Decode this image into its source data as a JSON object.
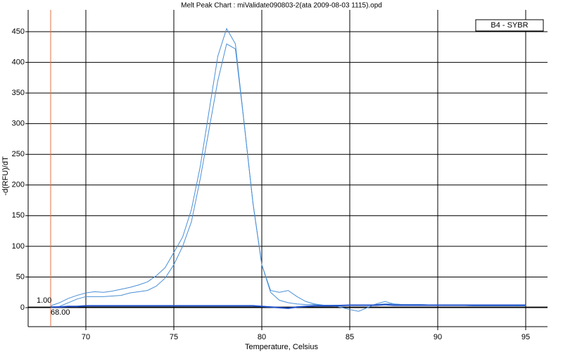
{
  "chart_data": {
    "type": "line",
    "title": "Melt Peak Chart : miValidate090803-2(ata 2009-08-03 1115).opd",
    "x_label": "Temperature, Celsius",
    "y_label": "-d(RFU)/dT",
    "x": [
      68,
      68.5,
      69,
      69.5,
      70,
      70.5,
      71,
      71.5,
      72,
      72.5,
      73,
      73.5,
      74,
      74.5,
      75,
      75.5,
      76,
      76.5,
      77,
      77.5,
      78,
      78.5,
      79,
      79.5,
      80,
      80.5,
      81,
      81.5,
      82,
      82.5,
      83,
      83.5,
      84,
      85,
      85.5,
      86,
      86.5,
      87,
      87.5,
      88,
      89,
      90,
      91,
      92,
      93,
      94,
      95
    ],
    "series": [
      {
        "name": "B4 - SYBR",
        "color": "#4a8fd6",
        "values": [
          3,
          8,
          15,
          20,
          24,
          26,
          25,
          27,
          30,
          33,
          37,
          42,
          52,
          65,
          90,
          115,
          160,
          230,
          320,
          410,
          455,
          430,
          300,
          170,
          70,
          28,
          25,
          28,
          18,
          10,
          6,
          4,
          4,
          -3,
          -6,
          0,
          6,
          10,
          6,
          5,
          5,
          4,
          4,
          3,
          3,
          3,
          3
        ]
      },
      {
        "color": "#4a8fd6",
        "values": [
          0,
          2,
          8,
          14,
          18,
          18,
          18,
          19,
          20,
          24,
          26,
          28,
          35,
          48,
          70,
          100,
          140,
          210,
          290,
          370,
          430,
          422,
          300,
          170,
          70,
          25,
          12,
          8,
          6,
          5,
          5,
          4,
          4,
          4,
          4,
          4,
          5,
          6,
          6,
          5,
          5,
          4,
          4,
          3,
          3,
          3,
          3
        ]
      },
      {
        "color": "#1f4fc8",
        "values": [
          1,
          1,
          2,
          2,
          3,
          3,
          3,
          3,
          3,
          3,
          3,
          3,
          3,
          3,
          3,
          3,
          3,
          3,
          3,
          3,
          3,
          3,
          3,
          3,
          2,
          1,
          0,
          -1,
          1,
          2,
          3,
          3,
          3,
          4,
          4,
          4,
          4,
          5,
          4,
          4,
          4,
          4,
          4,
          4,
          4,
          4,
          4
        ]
      }
    ],
    "xlim": [
      66.72,
      96.24
    ],
    "ylim": [
      -31,
      485.6
    ],
    "xticks": [
      70,
      75,
      80,
      85,
      90,
      95
    ],
    "yticks": [
      0,
      50,
      100,
      150,
      200,
      250,
      300,
      350,
      400,
      450
    ],
    "grid": true,
    "threshold_x": {
      "value": 68,
      "label": "68.00"
    },
    "threshold_y": {
      "value": 1,
      "label": "1.00"
    },
    "threshold_x_color": "#e07040",
    "legend": "upper right"
  }
}
